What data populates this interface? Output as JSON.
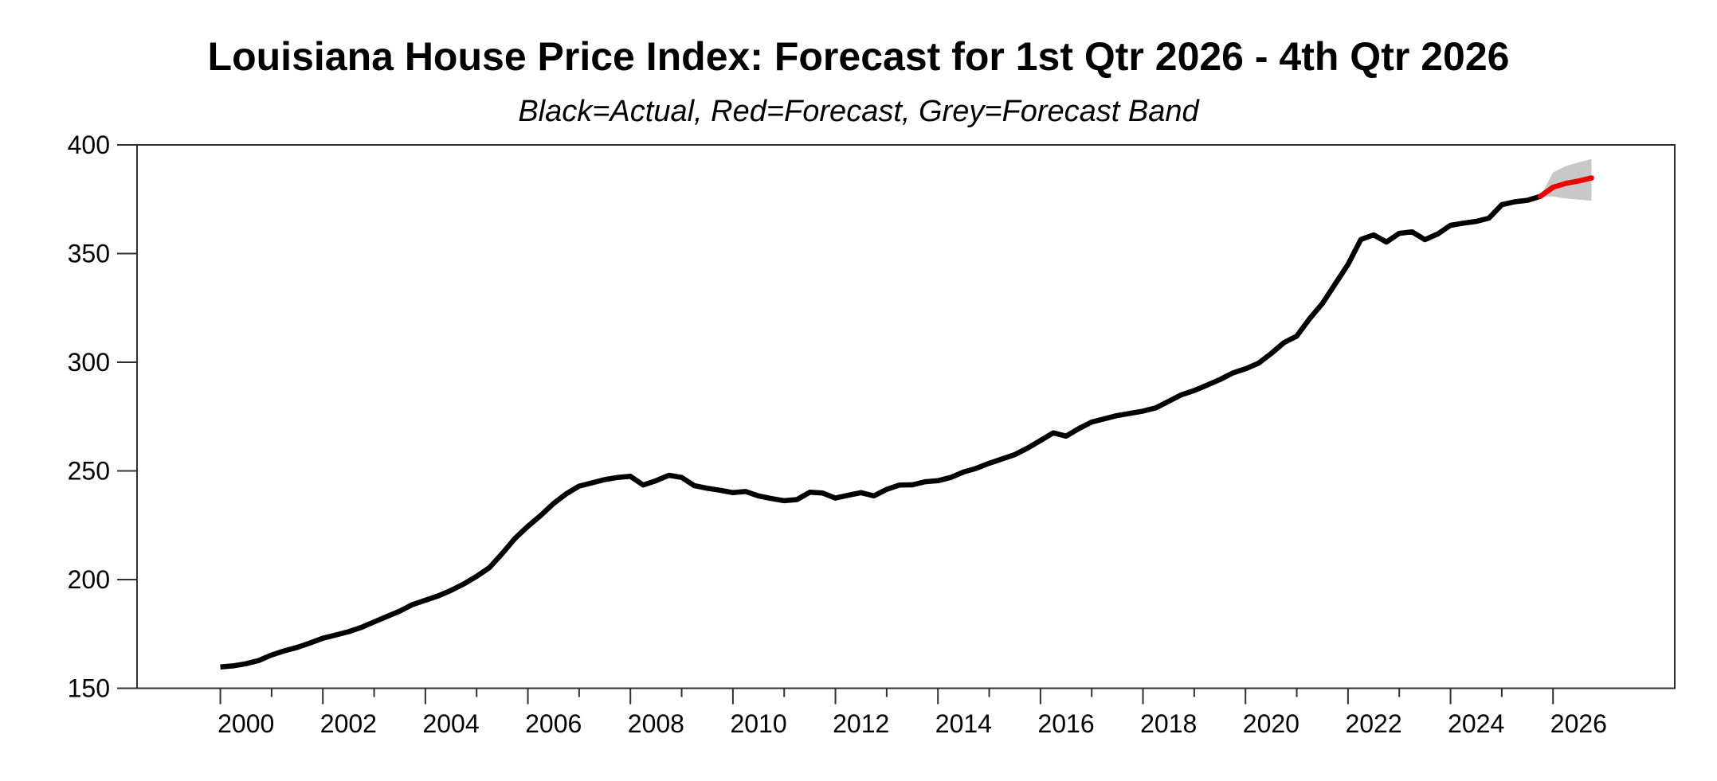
{
  "chart_data": {
    "type": "line",
    "title": "Louisiana House Price Index: Forecast for 1st Qtr 2026 - 4th Qtr 2026",
    "subtitle": "Black=Actual, Red=Forecast, Grey=Forecast Band",
    "legend": [
      {
        "label": "Actual",
        "color": "#000000"
      },
      {
        "label": "Forecast",
        "color": "#f20000"
      },
      {
        "label": "Forecast Band",
        "color": "#c8c8c8"
      }
    ],
    "x_axis": {
      "range": [
        1998.375,
        2028.375
      ],
      "tick_year_start": 2000,
      "tick_year_end": 2026,
      "major_every": 2,
      "labels": [
        "2000",
        "2002",
        "2004",
        "2006",
        "2008",
        "2010",
        "2012",
        "2014",
        "2016",
        "2018",
        "2020",
        "2022",
        "2024",
        "2026"
      ]
    },
    "y_axis": {
      "range": [
        150,
        400
      ],
      "ticks": [
        "150",
        "200",
        "250",
        "300",
        "350",
        "400"
      ]
    },
    "colors": {
      "actual": "#000000",
      "forecast": "#f20000",
      "band": "#c8c8c8",
      "frame": "#2f2f2f"
    },
    "series": [
      {
        "name": "Actual",
        "kind": "line",
        "color_key": "actual",
        "start_x": 2000.0,
        "step": 0.25,
        "period": "quarterly",
        "values": [
          159.8,
          160.3,
          161.3,
          162.8,
          165.3,
          167.2,
          168.8,
          170.8,
          173.0,
          174.5,
          176.0,
          178.0,
          180.5,
          183.0,
          185.5,
          188.5,
          190.5,
          192.5,
          195.0,
          198.0,
          201.5,
          205.5,
          212.0,
          219.0,
          224.5,
          229.5,
          235.0,
          239.5,
          243.0,
          244.5,
          246.0,
          247.0,
          247.5,
          243.5,
          245.5,
          248.0,
          247.0,
          243.2,
          242.0,
          241.1,
          240.0,
          240.5,
          238.5,
          237.3,
          236.3,
          236.8,
          240.2,
          239.8,
          237.5,
          238.8,
          240.0,
          238.5,
          241.5,
          243.5,
          243.6,
          245.0,
          245.5,
          247.0,
          249.5,
          251.2,
          253.5,
          255.5,
          257.5,
          260.5,
          264.0,
          267.5,
          266.0,
          269.5,
          272.5,
          274.0,
          275.5,
          276.5,
          277.5,
          279.0,
          282.0,
          285.0,
          287.0,
          289.5,
          292.0,
          295.0,
          297.0,
          299.5,
          304.0,
          309.0,
          312.0,
          320.0,
          327.0,
          336.0,
          345.0,
          356.5,
          358.6,
          355.3,
          359.3,
          360.0,
          356.4,
          359.0,
          363.0,
          364.0,
          364.8,
          366.3,
          372.5,
          373.8,
          374.5,
          376.3
        ]
      },
      {
        "name": "Forecast",
        "kind": "line",
        "color_key": "forecast",
        "x": [
          2025.75,
          2026.0,
          2026.25,
          2026.5,
          2026.75
        ],
        "values": [
          376.3,
          380.5,
          382.3,
          383.4,
          384.8
        ]
      },
      {
        "name": "Forecast Band",
        "kind": "band",
        "color_key": "band",
        "x": [
          2025.75,
          2026.0,
          2026.25,
          2026.5,
          2026.75
        ],
        "upper": [
          376.3,
          387.3,
          390.3,
          392.0,
          393.5
        ],
        "lower": [
          376.3,
          376.3,
          375.3,
          374.8,
          374.3
        ]
      }
    ]
  }
}
